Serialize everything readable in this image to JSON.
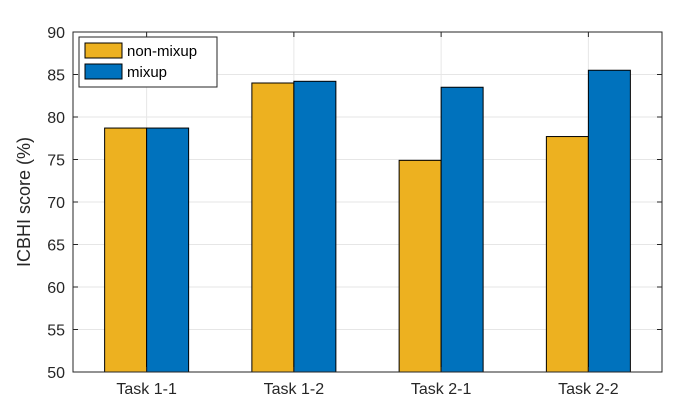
{
  "chart_data": {
    "type": "bar",
    "categories": [
      "Task 1-1",
      "Task 1-2",
      "Task 2-1",
      "Task 2-2"
    ],
    "series": [
      {
        "name": "non-mixup",
        "color": "#EDB120",
        "values": [
          78.7,
          84.0,
          74.9,
          77.7
        ]
      },
      {
        "name": "mixup",
        "color": "#0072BD",
        "values": [
          78.7,
          84.2,
          83.5,
          85.5
        ]
      }
    ],
    "title": "",
    "xlabel": "",
    "ylabel": "ICBHI score (%)",
    "ylim": [
      50,
      90
    ],
    "yticks": [
      50,
      55,
      60,
      65,
      70,
      75,
      80,
      85,
      90
    ],
    "grid": true,
    "legend_position": "top-left"
  }
}
